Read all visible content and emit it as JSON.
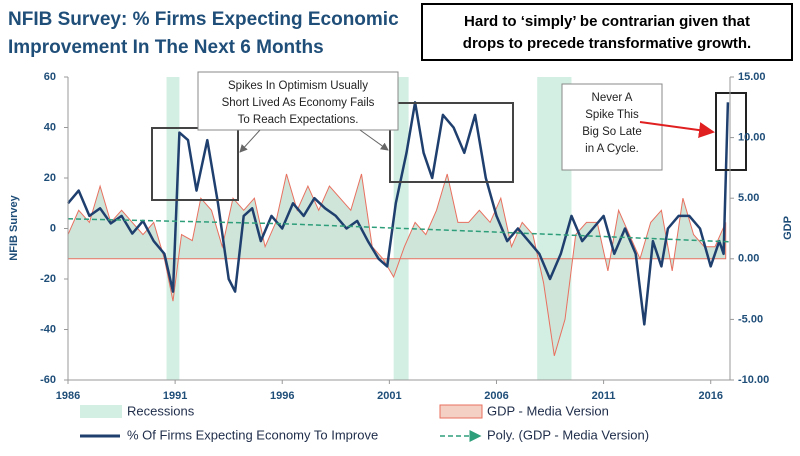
{
  "chart_data": {
    "type": "line",
    "title_lines": [
      "NFIB Survey:  % Firms Expecting Economic",
      "Improvement In The  Next 6 Months"
    ],
    "note_lines": [
      "Hard to ‘simply’ be contrarian given that",
      "drops to precede transformative growth."
    ],
    "y_label": "NFIB Survey",
    "y2_label": "GDP",
    "xlim": [
      1986,
      2016.9
    ],
    "xticks": [
      1986,
      1991,
      1996,
      2001,
      2006,
      2011,
      2016
    ],
    "ylim": [
      -60,
      60
    ],
    "yticks": [
      -60,
      -40,
      -20,
      0,
      20,
      40,
      60
    ],
    "y2lim": [
      -10,
      15
    ],
    "y2ticks": [
      {
        "value": -10,
        "label": "-10.00"
      },
      {
        "value": -5,
        "label": "-5.00"
      },
      {
        "value": 0,
        "label": "0.00"
      },
      {
        "value": 5,
        "label": "5.00"
      },
      {
        "value": 10,
        "label": "10.00"
      },
      {
        "value": 15,
        "label": "15.00"
      }
    ],
    "recessions": {
      "name": "Recessions",
      "color": "#d3efe4",
      "ranges": [
        [
          1990.6,
          1991.2
        ],
        [
          2001.2,
          2001.9
        ],
        [
          2007.9,
          2009.5
        ]
      ]
    },
    "series": [
      {
        "name": "GDP - Media Version",
        "kind": "area",
        "axis": "y2",
        "color": "#e8705f",
        "fill": "#cfe5da",
        "x": [
          1986.0,
          1986.5,
          1987.0,
          1987.5,
          1988.0,
          1988.5,
          1989.0,
          1989.5,
          1990.0,
          1990.5,
          1990.9,
          1991.3,
          1991.8,
          1992.2,
          1992.7,
          1993.2,
          1993.7,
          1994.2,
          1994.7,
          1995.2,
          1995.7,
          1996.2,
          1996.7,
          1997.2,
          1997.7,
          1998.2,
          1998.7,
          1999.2,
          1999.7,
          2000.2,
          2000.7,
          2001.2,
          2001.7,
          2002.2,
          2002.7,
          2003.2,
          2003.7,
          2004.2,
          2004.7,
          2005.2,
          2005.7,
          2006.2,
          2006.7,
          2007.2,
          2007.7,
          2008.2,
          2008.7,
          2009.2,
          2009.7,
          2010.2,
          2010.7,
          2011.2,
          2011.7,
          2012.2,
          2012.7,
          2013.2,
          2013.7,
          2014.2,
          2014.7,
          2015.2,
          2015.7,
          2016.2,
          2016.7
        ],
        "values": [
          2,
          4,
          3,
          6,
          3,
          4,
          3,
          2,
          3,
          0,
          -3.5,
          2,
          1.5,
          5,
          4,
          1,
          5,
          4,
          5,
          1,
          3,
          7,
          4,
          6,
          4,
          6,
          5,
          4,
          7,
          1,
          0,
          -1.5,
          1,
          3,
          2,
          4,
          7,
          3,
          3,
          4,
          3,
          5,
          1,
          3,
          2,
          -2,
          -8,
          -5,
          2,
          3,
          3,
          -1,
          4,
          2,
          0,
          3,
          4,
          -1,
          5,
          2,
          1,
          1,
          3
        ]
      },
      {
        "name": "% Of Firms Expecting Economy To Improve",
        "kind": "line",
        "axis": "y",
        "color": "#1f3f6e",
        "x": [
          1986.0,
          1986.5,
          1987.0,
          1987.5,
          1988.0,
          1988.5,
          1989.0,
          1989.5,
          1990.0,
          1990.5,
          1990.9,
          1991.2,
          1991.6,
          1992.0,
          1992.5,
          1993.0,
          1993.5,
          1993.8,
          1994.2,
          1994.6,
          1995.0,
          1995.5,
          1996.0,
          1996.5,
          1997.0,
          1997.5,
          1998.0,
          1998.5,
          1999.0,
          1999.5,
          2000.0,
          2000.5,
          2000.9,
          2001.3,
          2001.8,
          2002.2,
          2002.6,
          2003.0,
          2003.5,
          2004.0,
          2004.5,
          2005.0,
          2005.5,
          2006.0,
          2006.5,
          2007.0,
          2007.5,
          2008.0,
          2008.5,
          2009.0,
          2009.5,
          2010.0,
          2010.5,
          2011.0,
          2011.5,
          2012.0,
          2012.5,
          2012.9,
          2013.3,
          2013.7,
          2014.0,
          2014.5,
          2015.0,
          2015.5,
          2016.0,
          2016.4,
          2016.6,
          2016.8
        ],
        "values": [
          10,
          15,
          5,
          8,
          2,
          5,
          -2,
          3,
          -5,
          -10,
          -25,
          38,
          35,
          15,
          35,
          10,
          -20,
          -25,
          5,
          8,
          -5,
          5,
          0,
          10,
          5,
          12,
          8,
          5,
          0,
          3,
          -5,
          -12,
          -15,
          10,
          30,
          50,
          30,
          20,
          45,
          40,
          30,
          45,
          20,
          5,
          -5,
          0,
          -5,
          -10,
          -20,
          -10,
          5,
          -5,
          0,
          5,
          -10,
          0,
          -10,
          -38,
          -5,
          -15,
          0,
          5,
          5,
          0,
          -15,
          -5,
          -10,
          50
        ]
      },
      {
        "name": "Poly. (GDP - Media Version)",
        "kind": "dashed",
        "axis": "y2",
        "color": "#2e9e7a",
        "x": [
          1986,
          1996,
          2006,
          2016.9
        ],
        "values": [
          3.3,
          2.9,
          2.2,
          1.4
        ]
      }
    ],
    "annotations": [
      {
        "lines": [
          "Spikes In Optimism Usually",
          "Short Lived As Economy Fails",
          "To Reach Expectations."
        ]
      },
      {
        "lines": [
          "Never A",
          "Spike This",
          "Big So Late",
          "in A Cycle."
        ]
      }
    ]
  }
}
